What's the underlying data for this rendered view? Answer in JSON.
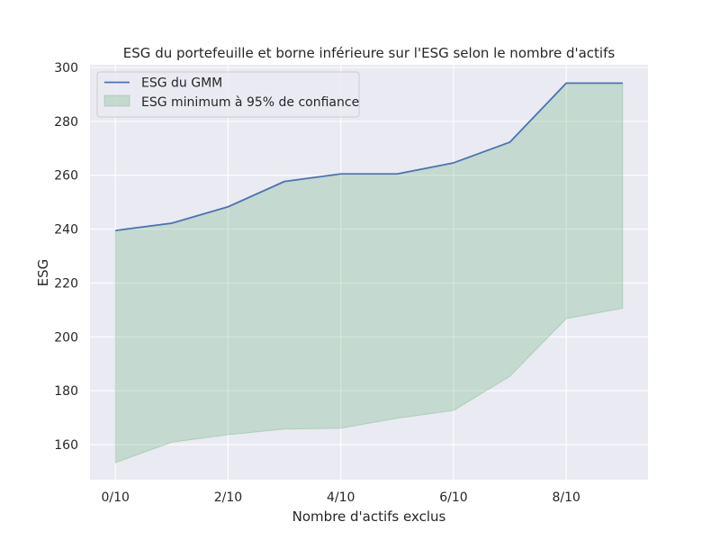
{
  "chart_data": {
    "type": "area",
    "title": "ESG du portefeuille et borne inférieure sur l'ESG selon le nombre d'actifs",
    "xlabel": "Nombre d'actifs exclus",
    "ylabel": "ESG",
    "x": [
      0,
      1,
      2,
      3,
      4,
      5,
      6,
      7,
      8,
      9
    ],
    "x_ticks": [
      0,
      2,
      4,
      6,
      8
    ],
    "x_tick_labels": [
      "0/10",
      "2/10",
      "4/10",
      "6/10",
      "8/10"
    ],
    "xlim": [
      -0.45,
      9.45
    ],
    "ylim": [
      147,
      301
    ],
    "y_ticks": [
      160,
      180,
      200,
      220,
      240,
      260,
      280,
      300
    ],
    "y_tick_labels": [
      "160",
      "180",
      "200",
      "220",
      "240",
      "260",
      "280",
      "300"
    ],
    "grid": true,
    "legend_position": "top-left",
    "series": [
      {
        "name": "ESG du GMM",
        "kind": "line",
        "color": "#4c72b0",
        "values": [
          239.5,
          242.2,
          248.3,
          257.7,
          260.5,
          260.5,
          264.6,
          272.3,
          294.2,
          294.2
        ]
      },
      {
        "name": "ESG minimum à 95% de confiance",
        "kind": "band",
        "color": "#55a868",
        "lower": [
          153.3,
          160.9,
          163.7,
          165.8,
          166.1,
          169.8,
          172.7,
          185.4,
          206.8,
          210.6
        ],
        "upper": [
          239.5,
          242.2,
          248.3,
          257.7,
          260.5,
          260.5,
          264.6,
          272.3,
          294.2,
          294.2
        ]
      }
    ]
  },
  "colors": {
    "plot_background": "#eaeaf2",
    "grid": "#ffffff",
    "text": "#262626"
  }
}
